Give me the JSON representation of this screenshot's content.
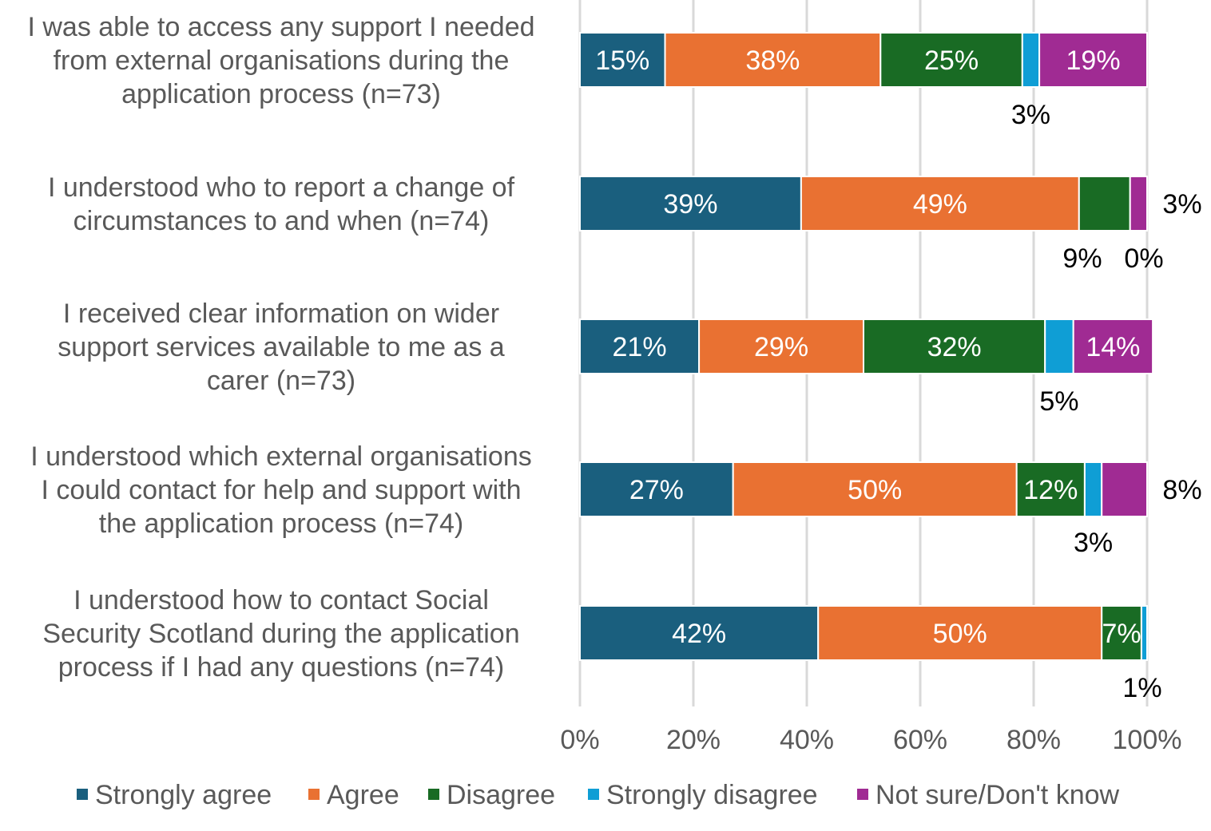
{
  "chart_data": {
    "type": "bar",
    "orientation": "horizontal",
    "stacked": true,
    "categories": [
      [
        "I was able to access any support I needed",
        "from external organisations during the",
        "application process (n=73)"
      ],
      [
        "I understood who to report a change of",
        "circumstances to and when (n=74)"
      ],
      [
        "I received clear information on wider",
        "support services available to me as a",
        "carer (n=73)"
      ],
      [
        "I understood which external organisations",
        "I could contact for help and support with",
        "the application process (n=74)"
      ],
      [
        "I understood how to contact Social",
        "Security Scotland during the application",
        "process if I had any questions (n=74)"
      ]
    ],
    "series": [
      {
        "name": "Strongly agree",
        "color": "#1A5F7E",
        "values": [
          15,
          39,
          21,
          27,
          42
        ]
      },
      {
        "name": "Agree",
        "color": "#E97132",
        "values": [
          38,
          49,
          29,
          50,
          50
        ]
      },
      {
        "name": "Disagree",
        "color": "#196B24",
        "values": [
          25,
          9,
          32,
          12,
          7
        ]
      },
      {
        "name": "Strongly disagree",
        "color": "#0F9ED5",
        "values": [
          3,
          0,
          5,
          3,
          1
        ]
      },
      {
        "name": "Not sure/Don't know",
        "color": "#A02B93",
        "values": [
          19,
          3,
          14,
          8,
          0
        ]
      }
    ],
    "data_labels": [
      [
        "15%",
        "38%",
        "25%",
        "3%",
        "19%"
      ],
      [
        "39%",
        "49%",
        "9%",
        "0%",
        "3%"
      ],
      [
        "21%",
        "29%",
        "32%",
        "5%",
        "14%"
      ],
      [
        "27%",
        "50%",
        "12%",
        "3%",
        "8%"
      ],
      [
        "42%",
        "50%",
        "7%",
        "1%",
        null
      ]
    ],
    "xlim": [
      0,
      100
    ],
    "x_ticks": [
      "0%",
      "20%",
      "40%",
      "60%",
      "80%",
      "100%"
    ],
    "grid": "vertical",
    "legend": "bottom",
    "title": "",
    "xlabel": "",
    "ylabel": ""
  }
}
